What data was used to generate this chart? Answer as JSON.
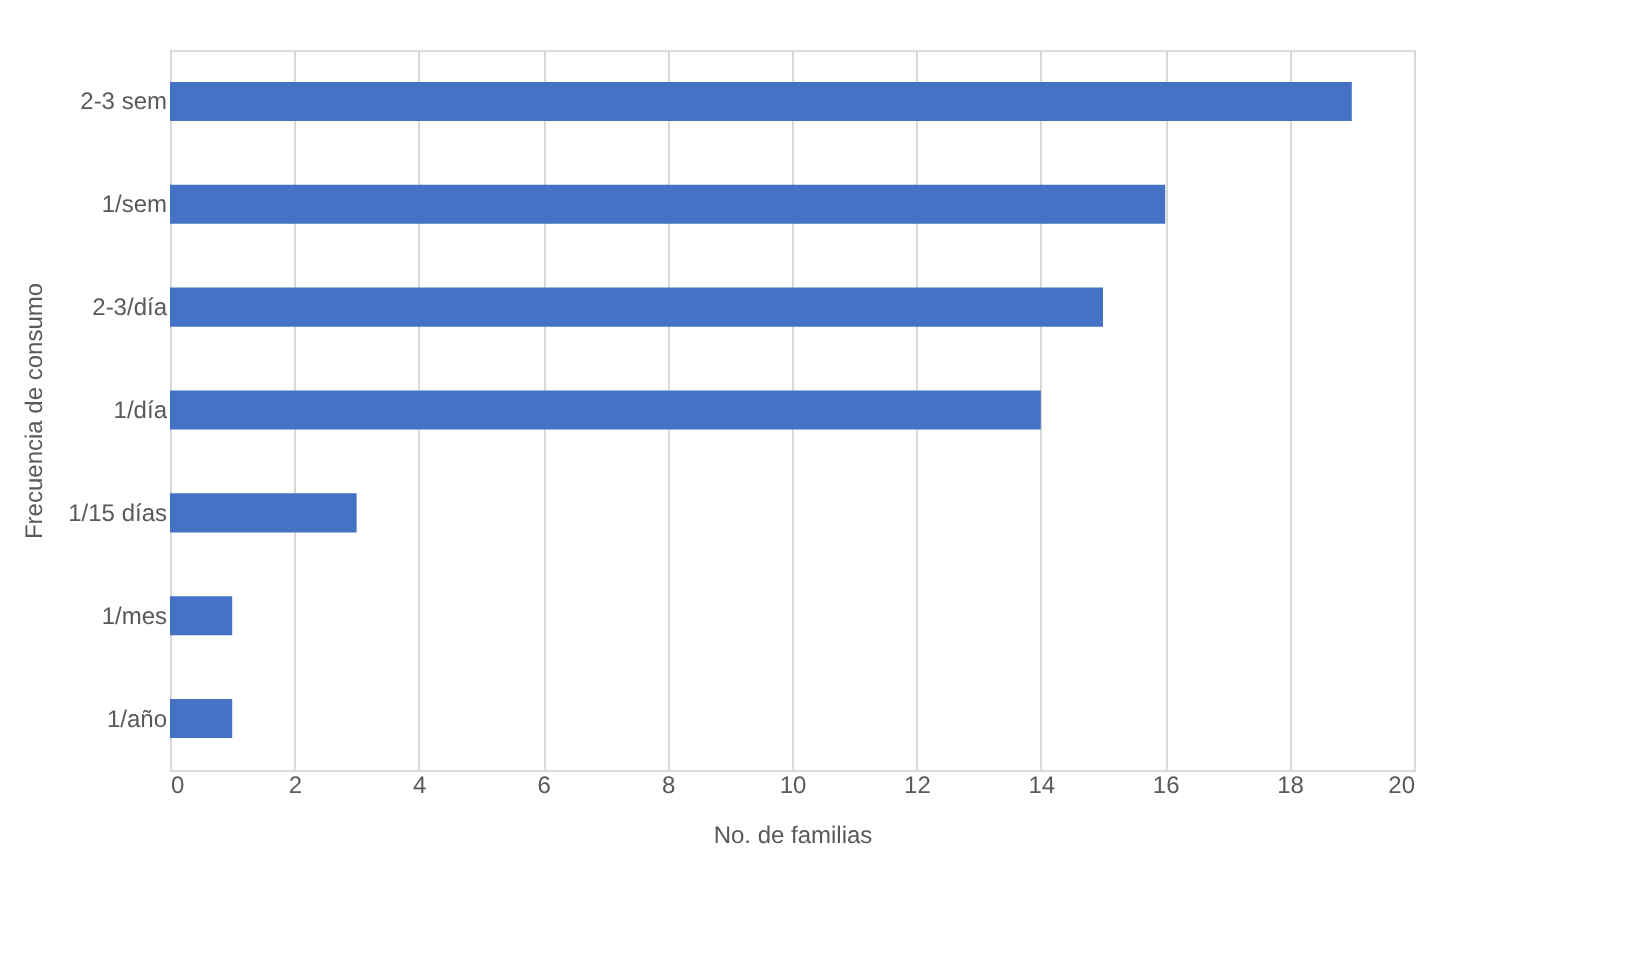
{
  "chart_data": {
    "type": "bar",
    "orientation": "horizontal",
    "categories": [
      "2-3 sem",
      "1/sem",
      "2-3/día",
      "1/día",
      "1/15 días",
      "1/mes",
      "1/año"
    ],
    "values": [
      19,
      16,
      15,
      14,
      3,
      1,
      1
    ],
    "color": "#4472c4",
    "xlabel": "No. de familias",
    "ylabel": "Frecuencia de consumo",
    "xlim": [
      0,
      20
    ],
    "xticks": [
      0,
      2,
      4,
      6,
      8,
      10,
      12,
      14,
      16,
      18,
      20
    ],
    "grid": "x"
  }
}
